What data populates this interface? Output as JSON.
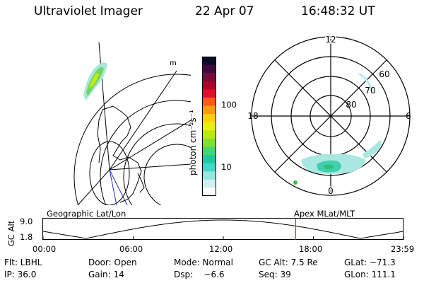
{
  "header": {
    "title": "Ultraviolet Imager",
    "date": "22 Apr 07",
    "time": "16:48:32 UT"
  },
  "colorbar": {
    "unit_label": "photon cm⁻²s⁻¹",
    "ticks": [
      "100",
      "10"
    ],
    "colors_top_to_bottom": [
      "#0a0a2a",
      "#400a40",
      "#7a0a3a",
      "#b0002a",
      "#e0102a",
      "#ff5a10",
      "#ff9a10",
      "#ffd010",
      "#e8f010",
      "#b8e810",
      "#80e030",
      "#40d870",
      "#20c8a0",
      "#40d8c8",
      "#90e8e0",
      "#d0f0f0",
      "#ffffff"
    ]
  },
  "geo_map": {
    "lat_lon_label_color": "#000000"
  },
  "polar_plot": {
    "mlt_labels": {
      "top": "12",
      "left": "18",
      "right": "6",
      "bottom": "0"
    },
    "lat_labels": [
      "60",
      "70",
      "80"
    ]
  },
  "timeline": {
    "y_axis_title": "GC Alt",
    "y_max_label": "9.0",
    "y_min_label": "1.8",
    "left_caption": "Geographic Lat/Lon",
    "right_caption": "Apex  MLat/MLT",
    "x_ticks": [
      "00:00",
      "06:00",
      "12:00",
      "18:00",
      "23:59"
    ],
    "current_time_fraction": 0.7007,
    "marker_color": "#d03030"
  },
  "footer": {
    "row1": [
      {
        "key": "filter",
        "text": "Flt: LBHL"
      },
      {
        "key": "door",
        "text": "Door: Open"
      },
      {
        "key": "mode",
        "text": "Mode: Normal"
      },
      {
        "key": "gc_alt",
        "text": "GC Alt: 7.5 Re"
      },
      {
        "key": "glat",
        "text": "GLat: −71.3"
      }
    ],
    "row2": [
      {
        "key": "ip",
        "text": "IP: 36.0"
      },
      {
        "key": "gain",
        "text": "Gain: 14"
      },
      {
        "key": "dsp",
        "text": "Dsp:    −6.6"
      },
      {
        "key": "seq",
        "text": "Seq: 39"
      },
      {
        "key": "glon",
        "text": "GLon: 111.1"
      }
    ]
  }
}
